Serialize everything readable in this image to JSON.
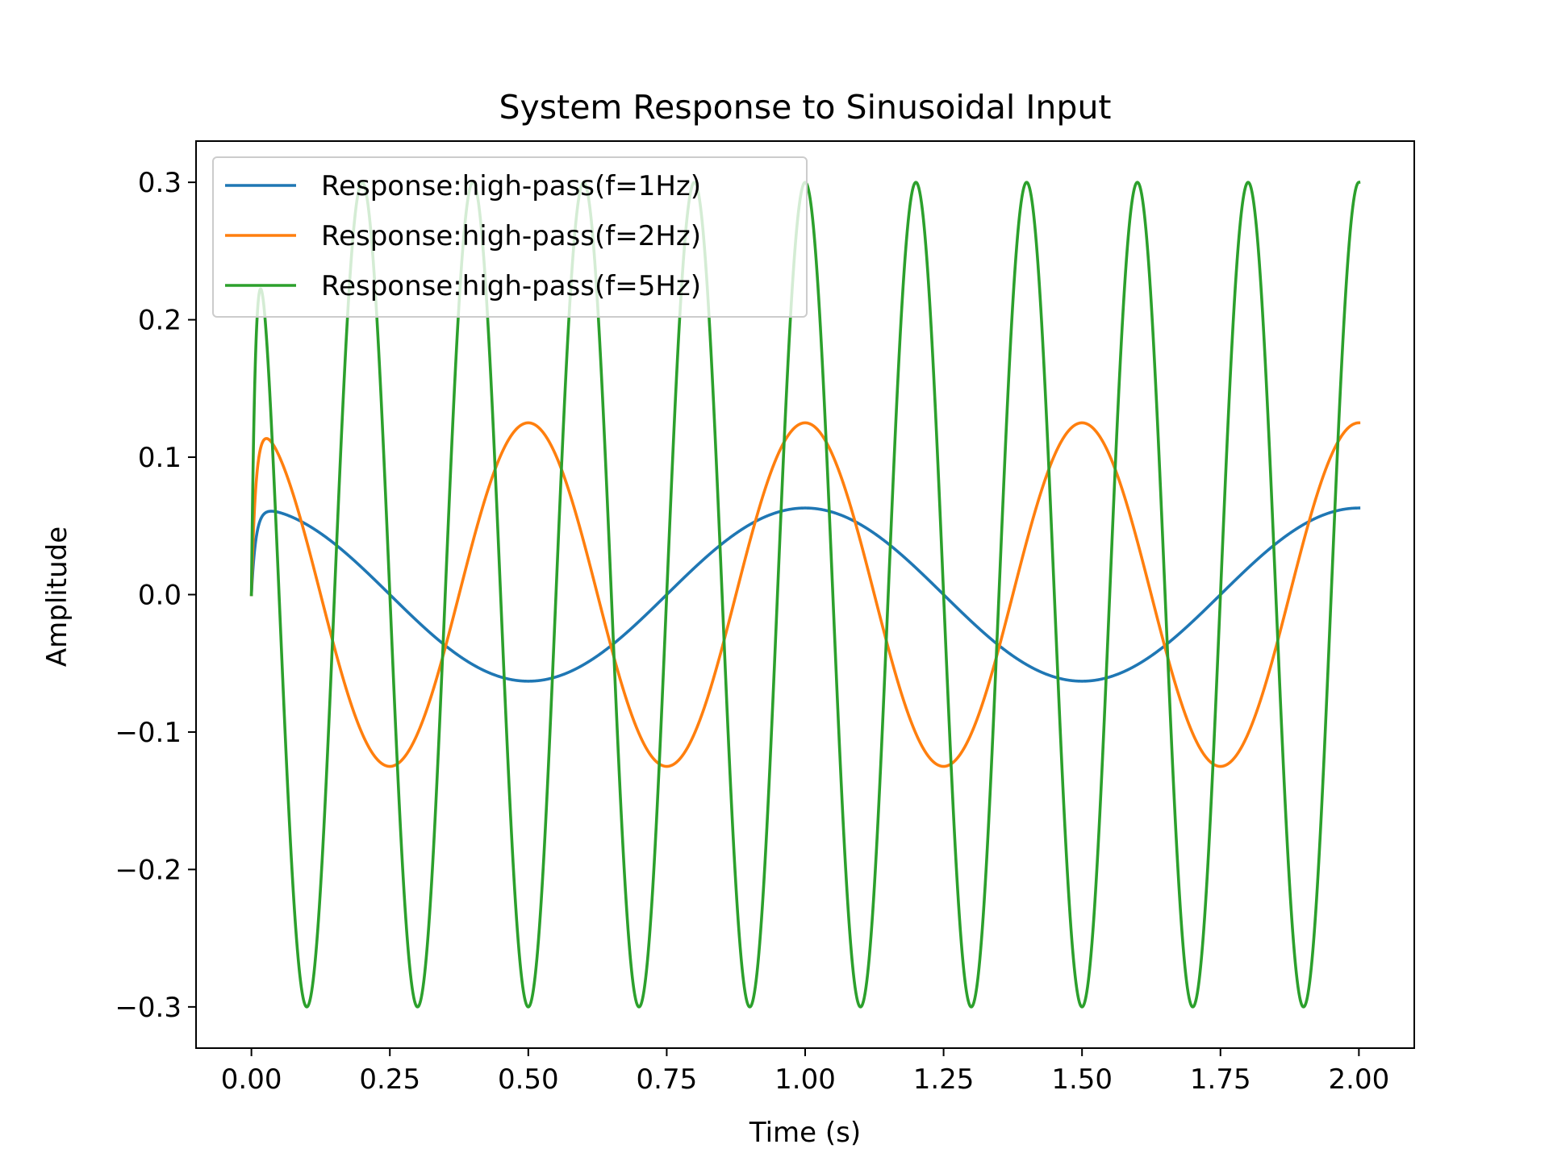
{
  "chart_data": {
    "type": "line",
    "title": "System Response to Sinusoidal Input",
    "xlabel": "Time (s)",
    "ylabel": "Amplitude",
    "xlim": [
      -0.1,
      2.1
    ],
    "ylim": [
      -0.33,
      0.33
    ],
    "xticks": [
      0.0,
      0.25,
      0.5,
      0.75,
      1.0,
      1.25,
      1.5,
      1.75,
      2.0
    ],
    "xtick_labels": [
      "0.00",
      "0.25",
      "0.50",
      "0.75",
      "1.00",
      "1.25",
      "1.50",
      "1.75",
      "2.00"
    ],
    "yticks": [
      0.3,
      0.2,
      0.1,
      0.0,
      -0.1,
      -0.2,
      -0.3
    ],
    "ytick_labels": [
      "0.3",
      "0.2",
      "0.1",
      "0.0",
      "−0.1",
      "−0.2",
      "−0.3"
    ],
    "grid": false,
    "legend_position": "top-left",
    "time_range": [
      0,
      2
    ],
    "series": [
      {
        "name": "Response:high-pass(f=1Hz)",
        "frequency_hz": 1,
        "amplitude": 0.063,
        "transient_tau": 0.008,
        "color": "#1f77b4"
      },
      {
        "name": "Response:high-pass(f=2Hz)",
        "frequency_hz": 2,
        "amplitude": 0.125,
        "transient_tau": 0.008,
        "color": "#ff7f0e"
      },
      {
        "name": "Response:high-pass(f=5Hz)",
        "frequency_hz": 5,
        "amplitude": 0.3,
        "transient_tau": 0.008,
        "color": "#2ca02c"
      }
    ]
  }
}
